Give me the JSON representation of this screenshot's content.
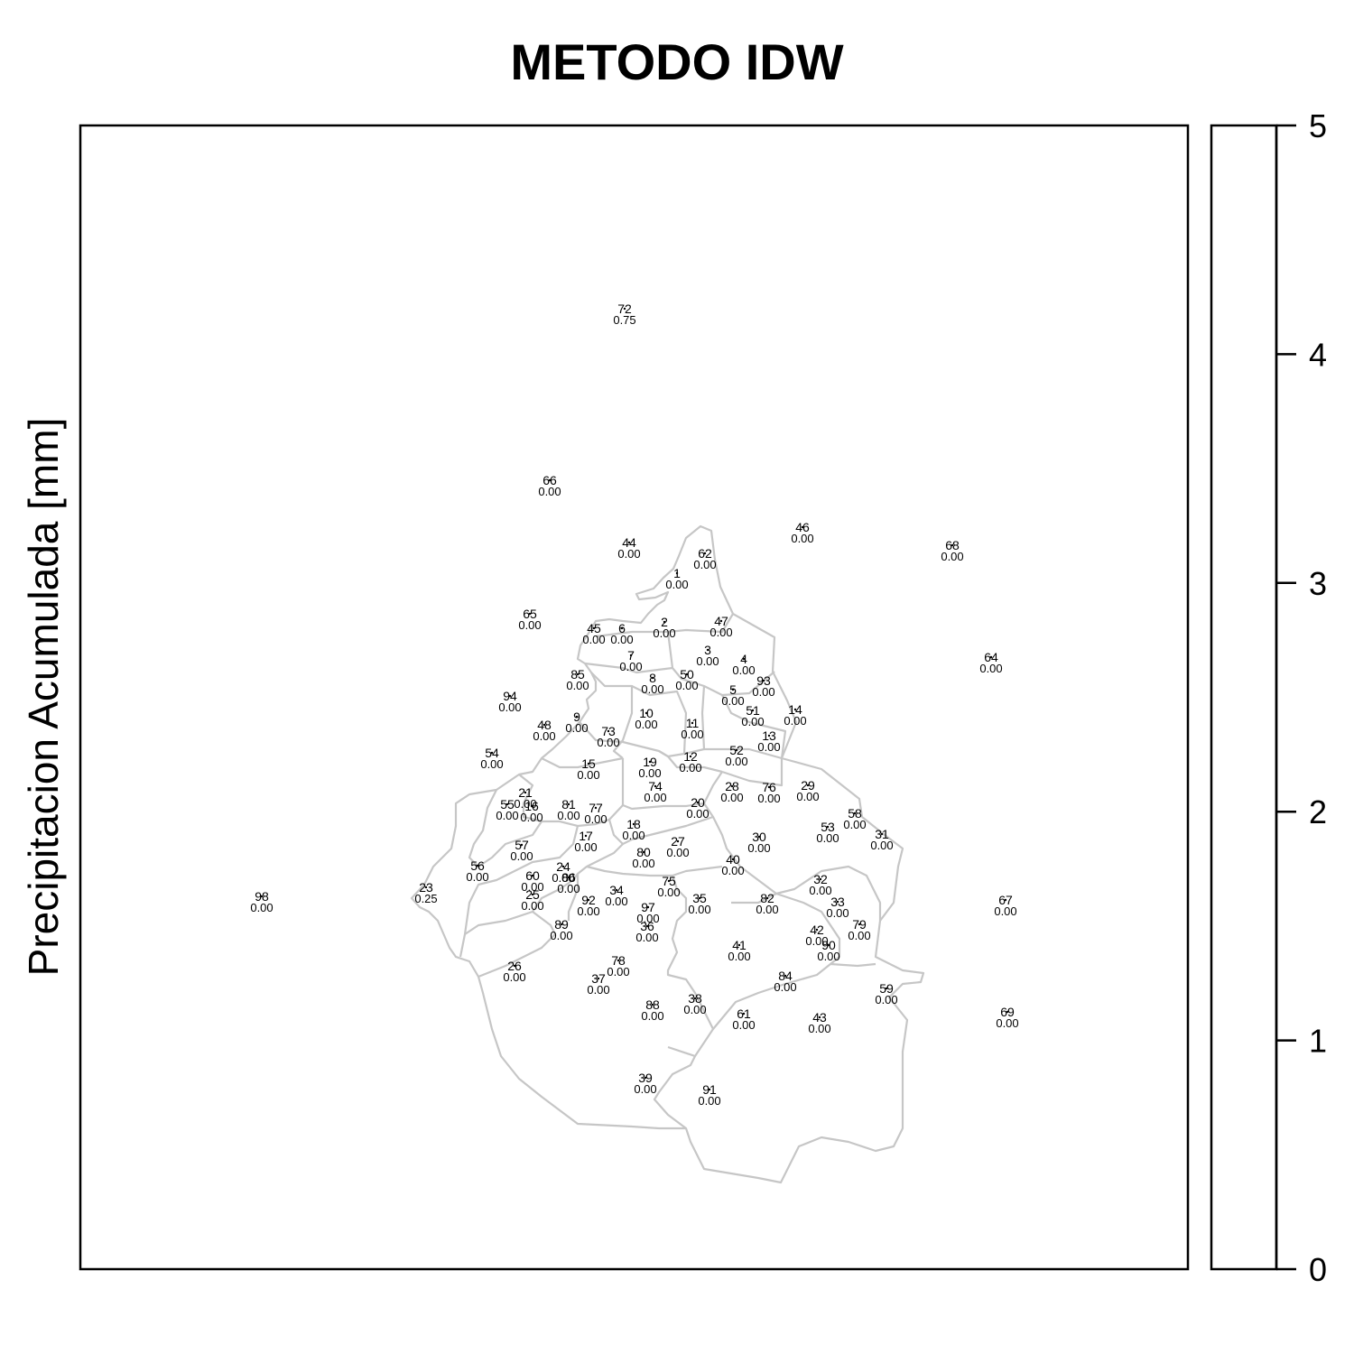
{
  "title": "METODO IDW",
  "ylabel": "Precipitacion Acumulada [mm]",
  "legend": {
    "ticks": [
      "0",
      "1",
      "2",
      "3",
      "4",
      "5"
    ]
  },
  "stations": [
    {
      "id": "72",
      "val": "0.75"
    },
    {
      "id": "66",
      "val": "0.00"
    },
    {
      "id": "44",
      "val": "0.00"
    },
    {
      "id": "46",
      "val": "0.00"
    },
    {
      "id": "62",
      "val": "0.00"
    },
    {
      "id": "68",
      "val": "0.00"
    },
    {
      "id": "1",
      "val": "0.00"
    },
    {
      "id": "65",
      "val": "0.00"
    },
    {
      "id": "45",
      "val": "0.00"
    },
    {
      "id": "6",
      "val": "0.00"
    },
    {
      "id": "2",
      "val": "0.00"
    },
    {
      "id": "47",
      "val": "0.00"
    },
    {
      "id": "64",
      "val": "0.00"
    },
    {
      "id": "3",
      "val": "0.00"
    },
    {
      "id": "4",
      "val": "0.00"
    },
    {
      "id": "7",
      "val": "0.00"
    },
    {
      "id": "85",
      "val": "0.00"
    },
    {
      "id": "8",
      "val": "0.00"
    },
    {
      "id": "50",
      "val": "0.00"
    },
    {
      "id": "93",
      "val": "0.00"
    },
    {
      "id": "94",
      "val": "0.00"
    },
    {
      "id": "5",
      "val": "0.00"
    },
    {
      "id": "51",
      "val": "0.00"
    },
    {
      "id": "14",
      "val": "0.00"
    },
    {
      "id": "9",
      "val": "0.00"
    },
    {
      "id": "48",
      "val": "0.00"
    },
    {
      "id": "10",
      "val": "0.00"
    },
    {
      "id": "11",
      "val": "0.00"
    },
    {
      "id": "73",
      "val": "0.00"
    },
    {
      "id": "13",
      "val": "0.00"
    },
    {
      "id": "54",
      "val": "0.00"
    },
    {
      "id": "52",
      "val": "0.00"
    },
    {
      "id": "12",
      "val": "0.00"
    },
    {
      "id": "15",
      "val": "0.00"
    },
    {
      "id": "19",
      "val": "0.00"
    },
    {
      "id": "74",
      "val": "0.00"
    },
    {
      "id": "28",
      "val": "0.00"
    },
    {
      "id": "76",
      "val": "0.00"
    },
    {
      "id": "29",
      "val": "0.00"
    },
    {
      "id": "21",
      "val": "0.00"
    },
    {
      "id": "55",
      "val": "0.00"
    },
    {
      "id": "16",
      "val": "0.00"
    },
    {
      "id": "81",
      "val": "0.00"
    },
    {
      "id": "77",
      "val": "0.00"
    },
    {
      "id": "20",
      "val": "0.00"
    },
    {
      "id": "58",
      "val": "0.00"
    },
    {
      "id": "53",
      "val": "0.00"
    },
    {
      "id": "18",
      "val": "0.00"
    },
    {
      "id": "31",
      "val": "0.00"
    },
    {
      "id": "17",
      "val": "0.00"
    },
    {
      "id": "57",
      "val": "0.00"
    },
    {
      "id": "30",
      "val": "0.00"
    },
    {
      "id": "27",
      "val": "0.00"
    },
    {
      "id": "80",
      "val": "0.00"
    },
    {
      "id": "40",
      "val": "0.00"
    },
    {
      "id": "56",
      "val": "0.00"
    },
    {
      "id": "24",
      "val": "0.00"
    },
    {
      "id": "60",
      "val": "0.00"
    },
    {
      "id": "86",
      "val": "0.00"
    },
    {
      "id": "32",
      "val": "0.00"
    },
    {
      "id": "75",
      "val": "0.00"
    },
    {
      "id": "23",
      "val": "0.25"
    },
    {
      "id": "98",
      "val": "0.00"
    },
    {
      "id": "25",
      "val": "0.00"
    },
    {
      "id": "34",
      "val": "0.00"
    },
    {
      "id": "92",
      "val": "0.00"
    },
    {
      "id": "35",
      "val": "0.00"
    },
    {
      "id": "82",
      "val": "0.00"
    },
    {
      "id": "33",
      "val": "0.00"
    },
    {
      "id": "67",
      "val": "0.00"
    },
    {
      "id": "97",
      "val": "0.00"
    },
    {
      "id": "89",
      "val": "0.00"
    },
    {
      "id": "36",
      "val": "0.00"
    },
    {
      "id": "79",
      "val": "0.00"
    },
    {
      "id": "42",
      "val": "0.00"
    },
    {
      "id": "90",
      "val": "0.00"
    },
    {
      "id": "41",
      "val": "0.00"
    },
    {
      "id": "26",
      "val": "0.00"
    },
    {
      "id": "78",
      "val": "0.00"
    },
    {
      "id": "84",
      "val": "0.00"
    },
    {
      "id": "37",
      "val": "0.00"
    },
    {
      "id": "59",
      "val": "0.00"
    },
    {
      "id": "38",
      "val": "0.00"
    },
    {
      "id": "88",
      "val": "0.00"
    },
    {
      "id": "61",
      "val": "0.00"
    },
    {
      "id": "43",
      "val": "0.00"
    },
    {
      "id": "69",
      "val": "0.00"
    },
    {
      "id": "39",
      "val": "0.00"
    },
    {
      "id": "91",
      "val": "0.00"
    }
  ]
}
